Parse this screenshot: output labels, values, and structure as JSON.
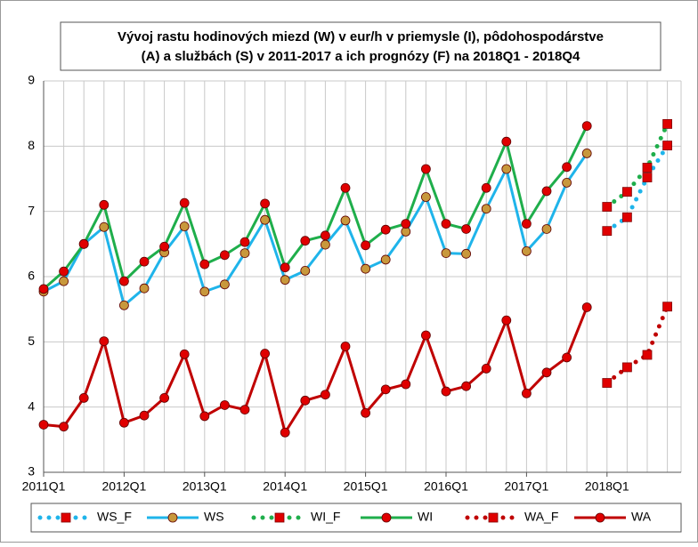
{
  "chart_data": {
    "type": "line",
    "title": [
      "Vývoj rastu hodinových miezd (W) v eur/h v priemysle (I), pôdohospodárstve",
      "(A) a službách (S) v 2011-2017 a ich prognózy (F) na 2018Q1 - 2018Q4"
    ],
    "categories": [
      "2011Q1",
      null,
      null,
      null,
      "2012Q1",
      null,
      null,
      null,
      "2013Q1",
      null,
      null,
      null,
      "2014Q1",
      null,
      null,
      null,
      "2015Q1",
      null,
      null,
      null,
      "2016Q1",
      null,
      null,
      null,
      "2017Q1",
      null,
      null,
      null,
      "2018Q1",
      null,
      null,
      null
    ],
    "ylim": [
      3,
      9
    ],
    "yticks": [
      3,
      4,
      5,
      6,
      7,
      8,
      9
    ],
    "grid": true,
    "legend": "bottom",
    "series": [
      {
        "name": "WS_F",
        "color": "#1fb4ea",
        "marker": "square",
        "marker_color": "#e00000",
        "line_style": "dotted",
        "values": [
          null,
          null,
          null,
          null,
          null,
          null,
          null,
          null,
          null,
          null,
          null,
          null,
          null,
          null,
          null,
          null,
          null,
          null,
          null,
          null,
          null,
          null,
          null,
          null,
          null,
          null,
          null,
          null,
          6.7,
          6.91,
          7.52,
          8.01
        ]
      },
      {
        "name": "WS",
        "color": "#1fb4ea",
        "marker": "circle",
        "marker_color": "#c8983c",
        "line_style": "solid",
        "values": [
          5.77,
          5.93,
          6.5,
          6.76,
          5.56,
          5.82,
          6.37,
          6.77,
          5.77,
          5.88,
          6.36,
          6.87,
          5.95,
          6.09,
          6.49,
          6.86,
          6.12,
          6.26,
          6.69,
          7.22,
          6.36,
          6.35,
          7.04,
          7.65,
          6.39,
          6.73,
          7.44,
          7.89,
          null,
          null,
          null,
          null
        ]
      },
      {
        "name": "WI_F",
        "color": "#1fae4b",
        "marker": "square",
        "marker_color": "#e00000",
        "line_style": "dotted",
        "values": [
          null,
          null,
          null,
          null,
          null,
          null,
          null,
          null,
          null,
          null,
          null,
          null,
          null,
          null,
          null,
          null,
          null,
          null,
          null,
          null,
          null,
          null,
          null,
          null,
          null,
          null,
          null,
          null,
          7.07,
          7.3,
          7.67,
          8.34
        ]
      },
      {
        "name": "WI",
        "color": "#1fae4b",
        "marker": "circle",
        "marker_color": "#e00000",
        "line_style": "solid",
        "values": [
          5.81,
          6.08,
          6.5,
          7.1,
          5.93,
          6.23,
          6.46,
          7.13,
          6.19,
          6.33,
          6.53,
          7.12,
          6.14,
          6.55,
          6.63,
          7.36,
          6.48,
          6.72,
          6.81,
          7.65,
          6.81,
          6.73,
          7.36,
          8.07,
          6.81,
          7.31,
          7.68,
          8.31,
          null,
          null,
          null,
          null
        ]
      },
      {
        "name": "WA_F",
        "color": "#c00000",
        "marker": "square",
        "marker_color": "#e00000",
        "line_style": "dotted",
        "values": [
          null,
          null,
          null,
          null,
          null,
          null,
          null,
          null,
          null,
          null,
          null,
          null,
          null,
          null,
          null,
          null,
          null,
          null,
          null,
          null,
          null,
          null,
          null,
          null,
          null,
          null,
          null,
          null,
          4.37,
          4.61,
          4.8,
          5.54
        ]
      },
      {
        "name": "WA",
        "color": "#c00000",
        "marker": "circle",
        "marker_color": "#e00000",
        "line_style": "solid",
        "values": [
          3.73,
          3.7,
          4.14,
          5.01,
          3.76,
          3.87,
          4.14,
          4.81,
          3.86,
          4.03,
          3.96,
          4.82,
          3.61,
          4.1,
          4.19,
          4.93,
          3.91,
          4.27,
          4.35,
          5.1,
          4.24,
          4.32,
          4.59,
          5.33,
          4.21,
          4.53,
          4.76,
          5.53,
          null,
          null,
          null,
          null
        ]
      }
    ]
  }
}
